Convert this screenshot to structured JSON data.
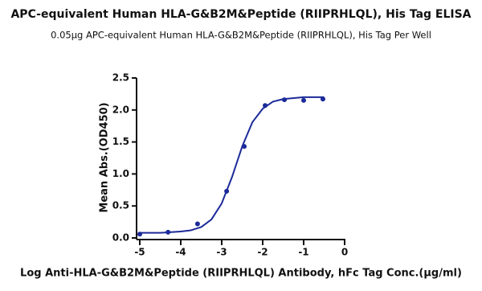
{
  "chart_data": {
    "type": "scatter",
    "title": "APC-equivalent Human HLA-G&B2M&Peptide (RIIPRHLQL), His Tag ELISA",
    "subtitle": "0.05μg APC-equivalent Human HLA-G&B2M&Peptide (RIIPRHLQL), His Tag Per Well",
    "x_label": "Log Anti-HLA-G&B2M&Peptide (RIIPRHLQL) Antibody, hFc Tag Conc.(μg/ml)",
    "y_label": "Mean Abs.(OD450)",
    "xlim": [
      -5,
      0
    ],
    "ylim": [
      0,
      2.5
    ],
    "xticks": [
      -5,
      -4,
      -3,
      -2,
      -1,
      0
    ],
    "yticks": [
      {
        "value": 0,
        "label": "0.0"
      },
      0.5,
      {
        "value": 1,
        "label": "1.0"
      },
      1.5,
      {
        "value": 2,
        "label": "2.0"
      },
      2.5
    ],
    "series": [
      {
        "type": "scatter",
        "color": "#1c2a99",
        "x": [
          -5,
          -4.31,
          -3.59,
          -2.88,
          -2.45,
          -1.94,
          -1.47,
          -1.0,
          -0.53
        ],
        "values": [
          0.06,
          0.09,
          0.22,
          0.73,
          1.43,
          2.07,
          2.16,
          2.15,
          2.17
        ]
      },
      {
        "type": "line",
        "color": "#1c2a99",
        "x": [
          -5,
          -4.5,
          -4,
          -3.75,
          -3.5,
          -3.25,
          -3,
          -2.75,
          -2.5,
          -2.25,
          -2,
          -1.75,
          -1.5,
          -1,
          -0.5
        ],
        "values": [
          0.08,
          0.08,
          0.1,
          0.12,
          0.17,
          0.29,
          0.54,
          0.95,
          1.43,
          1.81,
          2.02,
          2.13,
          2.17,
          2.2,
          2.2
        ]
      }
    ]
  }
}
